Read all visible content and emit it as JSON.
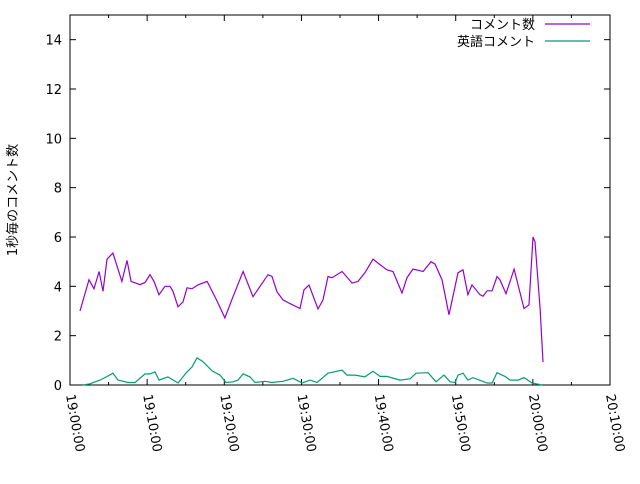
{
  "chart_data": {
    "type": "line",
    "title": "",
    "xlabel": "",
    "ylabel": "1秒毎のコメント数",
    "xlim": [
      "19:00:00",
      "20:10:00"
    ],
    "ylim": [
      0,
      15
    ],
    "x_ticks": [
      "19:00:00",
      "19:10:00",
      "19:20:00",
      "19:30:00",
      "19:40:00",
      "19:50:00",
      "20:00:00",
      "20:10:00"
    ],
    "y_ticks": [
      "0",
      "2",
      "4",
      "6",
      "8",
      "10",
      "12",
      "14"
    ],
    "grid": false,
    "legend_position": "top-right",
    "series": [
      {
        "name": "コメント数",
        "color": "#9400d3",
        "points": [
          [
            "19:01:18",
            3.0
          ],
          [
            "19:02:28",
            4.27
          ],
          [
            "19:03:07",
            3.9
          ],
          [
            "19:03:46",
            4.6
          ],
          [
            "19:04:17",
            3.8
          ],
          [
            "19:04:48",
            5.1
          ],
          [
            "19:05:34",
            5.35
          ],
          [
            "19:06:44",
            4.2
          ],
          [
            "19:07:23",
            5.05
          ],
          [
            "19:07:55",
            4.2
          ],
          [
            "19:09:04",
            4.07
          ],
          [
            "19:09:43",
            4.15
          ],
          [
            "19:10:22",
            4.47
          ],
          [
            "19:10:53",
            4.2
          ],
          [
            "19:11:32",
            3.66
          ],
          [
            "19:12:19",
            4.0
          ],
          [
            "19:12:58",
            4.0
          ],
          [
            "19:13:21",
            3.8
          ],
          [
            "19:14:00",
            3.17
          ],
          [
            "19:14:39",
            3.37
          ],
          [
            "19:15:10",
            3.94
          ],
          [
            "19:15:49",
            3.9
          ],
          [
            "19:16:35",
            4.06
          ],
          [
            "19:17:46",
            4.2
          ],
          [
            "19:19:04",
            3.4
          ],
          [
            "19:20:05",
            2.72
          ],
          [
            "19:21:08",
            3.58
          ],
          [
            "19:22:26",
            4.6
          ],
          [
            "19:23:43",
            3.58
          ],
          [
            "19:25:40",
            4.47
          ],
          [
            "19:26:11",
            4.4
          ],
          [
            "19:26:50",
            3.78
          ],
          [
            "19:27:37",
            3.45
          ],
          [
            "19:28:31",
            3.3
          ],
          [
            "19:29:49",
            3.1
          ],
          [
            "19:30:20",
            3.86
          ],
          [
            "19:30:59",
            4.05
          ],
          [
            "19:32:09",
            3.08
          ],
          [
            "19:32:48",
            3.45
          ],
          [
            "19:33:27",
            4.4
          ],
          [
            "19:33:58",
            4.35
          ],
          [
            "19:35:16",
            4.6
          ],
          [
            "19:36:34",
            4.13
          ],
          [
            "19:37:20",
            4.2
          ],
          [
            "19:38:14",
            4.55
          ],
          [
            "19:39:17",
            5.1
          ],
          [
            "19:40:11",
            4.88
          ],
          [
            "19:41:05",
            4.67
          ],
          [
            "19:41:52",
            4.6
          ],
          [
            "19:43:02",
            3.73
          ],
          [
            "19:43:41",
            4.35
          ],
          [
            "19:44:28",
            4.7
          ],
          [
            "19:45:46",
            4.6
          ],
          [
            "19:46:48",
            5.0
          ],
          [
            "19:47:19",
            4.9
          ],
          [
            "19:48:13",
            4.27
          ],
          [
            "19:49:08",
            2.85
          ],
          [
            "19:50:18",
            4.55
          ],
          [
            "19:50:57",
            4.67
          ],
          [
            "19:51:35",
            3.66
          ],
          [
            "19:52:07",
            4.06
          ],
          [
            "19:53:09",
            3.66
          ],
          [
            "19:53:32",
            3.6
          ],
          [
            "19:54:04",
            3.82
          ],
          [
            "19:54:43",
            3.82
          ],
          [
            "19:55:21",
            4.4
          ],
          [
            "19:55:44",
            4.27
          ],
          [
            "19:56:31",
            3.7
          ],
          [
            "19:57:34",
            4.7
          ],
          [
            "19:58:51",
            3.1
          ],
          [
            "19:59:30",
            3.25
          ],
          [
            "20:00:01",
            6.0
          ],
          [
            "20:00:17",
            5.8
          ],
          [
            "20:00:56",
            3.1
          ],
          [
            "20:01:19",
            0.93
          ]
        ]
      },
      {
        "name": "英語コメント",
        "color": "#009e73",
        "points": [
          [
            "19:01:41",
            0.0
          ],
          [
            "19:02:35",
            0.05
          ],
          [
            "19:03:53",
            0.2
          ],
          [
            "19:04:32",
            0.3
          ],
          [
            "19:05:34",
            0.48
          ],
          [
            "19:06:13",
            0.2
          ],
          [
            "19:07:31",
            0.1
          ],
          [
            "19:08:26",
            0.1
          ],
          [
            "19:09:43",
            0.45
          ],
          [
            "19:10:22",
            0.45
          ],
          [
            "19:11:01",
            0.53
          ],
          [
            "19:11:32",
            0.2
          ],
          [
            "19:12:42",
            0.33
          ],
          [
            "19:14:00",
            0.08
          ],
          [
            "19:15:10",
            0.53
          ],
          [
            "19:15:49",
            0.73
          ],
          [
            "19:16:28",
            1.1
          ],
          [
            "19:17:14",
            0.95
          ],
          [
            "19:18:25",
            0.57
          ],
          [
            "19:19:27",
            0.4
          ],
          [
            "19:20:13",
            0.1
          ],
          [
            "19:21:08",
            0.13
          ],
          [
            "19:21:47",
            0.2
          ],
          [
            "19:22:26",
            0.45
          ],
          [
            "19:23:20",
            0.33
          ],
          [
            "19:23:59",
            0.1
          ],
          [
            "19:25:17",
            0.15
          ],
          [
            "19:26:11",
            0.1
          ],
          [
            "19:27:37",
            0.15
          ],
          [
            "19:28:55",
            0.27
          ],
          [
            "19:30:05",
            0.08
          ],
          [
            "19:31:07",
            0.2
          ],
          [
            "19:32:01",
            0.1
          ],
          [
            "19:33:27",
            0.48
          ],
          [
            "19:35:16",
            0.6
          ],
          [
            "19:35:55",
            0.4
          ],
          [
            "19:36:57",
            0.4
          ],
          [
            "19:38:14",
            0.33
          ],
          [
            "19:39:17",
            0.56
          ],
          [
            "19:40:11",
            0.35
          ],
          [
            "19:41:05",
            0.35
          ],
          [
            "19:42:47",
            0.2
          ],
          [
            "19:44:05",
            0.25
          ],
          [
            "19:44:51",
            0.48
          ],
          [
            "19:46:25",
            0.5
          ],
          [
            "19:47:27",
            0.13
          ],
          [
            "19:48:29",
            0.4
          ],
          [
            "19:49:16",
            0.13
          ],
          [
            "19:49:55",
            0.1
          ],
          [
            "19:50:18",
            0.4
          ],
          [
            "19:50:57",
            0.48
          ],
          [
            "19:51:35",
            0.2
          ],
          [
            "19:52:14",
            0.3
          ],
          [
            "19:54:04",
            0.08
          ],
          [
            "19:54:43",
            0.08
          ],
          [
            "19:55:21",
            0.5
          ],
          [
            "19:56:23",
            0.35
          ],
          [
            "19:57:02",
            0.2
          ],
          [
            "19:58:05",
            0.2
          ],
          [
            "19:58:51",
            0.3
          ],
          [
            "19:59:53",
            0.08
          ],
          [
            "20:01:11",
            0.0
          ]
        ]
      }
    ]
  }
}
